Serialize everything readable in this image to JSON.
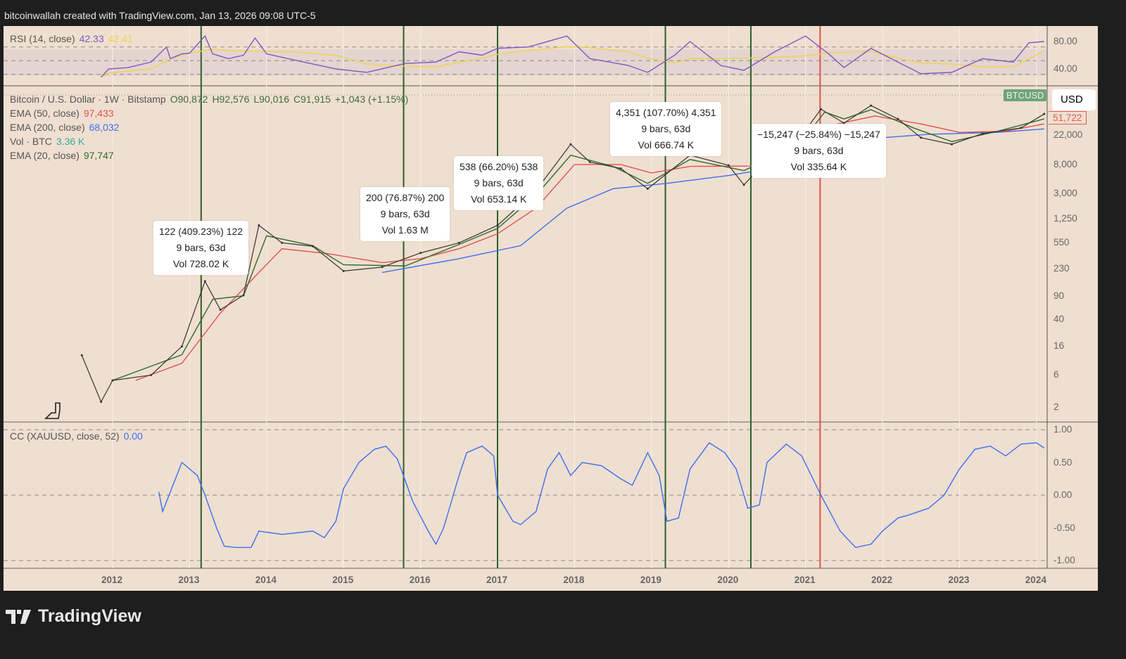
{
  "credit": "bitcoinwallah created with TradingView.com, Jan 13, 2026 09:08 UTC-5",
  "brand": "TradingView",
  "rsi": {
    "label": "RSI (14, close)",
    "value": "42.33",
    "ma_value": "42.41",
    "ticks": [
      "80.00",
      "40.00"
    ],
    "color": "#7e57c2",
    "ma_color": "#f0d34a"
  },
  "main": {
    "symbol": "Bitcoin / U.S. Dollar · 1W · Bitstamp",
    "open": "O90,872",
    "high": "H92,576",
    "low": "L90,016",
    "close": "C91,915",
    "change": "+1,043 (+1.15%)",
    "ema50": {
      "label": "EMA (50, close)",
      "value": "97,433",
      "color": "#e2524e"
    },
    "ema200": {
      "label": "EMA (200, close)",
      "value": "68,032",
      "color": "#3c6ff0"
    },
    "vol": {
      "label": "Vol · BTC",
      "value": "3.36 K",
      "color": "#3aa79a"
    },
    "ema20": {
      "label": "EMA (20, close)",
      "value": "97,747",
      "color": "#2e6a2e"
    },
    "ticker_tag": "BTCUSD",
    "currency": "USD",
    "last_price": "51,722",
    "price_ticks": [
      "22,000",
      "8,000",
      "3,000",
      "1,250",
      "550",
      "230",
      "90",
      "40",
      "16",
      "6",
      "2"
    ]
  },
  "cc": {
    "label": "CC (XAUUSD, close, 52)",
    "value": "0.00",
    "color": "#3c6ff0",
    "ticks": [
      "1.00",
      "0.50",
      "0.00",
      "-0.50",
      "-1.00"
    ]
  },
  "x_ticks": [
    "2012",
    "2013",
    "2014",
    "2015",
    "2016",
    "2017",
    "2018",
    "2019",
    "2020",
    "2021",
    "2022",
    "2023",
    "2024"
  ],
  "annotations": [
    {
      "line1": "122 (409.23%) 122",
      "line2": "9 bars, 63d",
      "line3": "Vol 728.02 K"
    },
    {
      "line1": "200 (76.87%) 200",
      "line2": "9 bars, 63d",
      "line3": "Vol 1.63 M"
    },
    {
      "line1": "538 (66.20%) 538",
      "line2": "9 bars, 63d",
      "line3": "Vol 653.14 K"
    },
    {
      "line1": "4,351 (107.70%) 4,351",
      "line2": "9 bars, 63d",
      "line3": "Vol 666.74 K"
    },
    {
      "line1": "−15,247 (−25.84%) −15,247",
      "line2": "9 bars, 63d",
      "line3": "Vol 335.64 K"
    }
  ],
  "chart_data": [
    {
      "type": "line",
      "title": "Bitcoin / U.S. Dollar · 1W · Bitstamp",
      "yscale": "log",
      "x_unit": "year",
      "price": [
        [
          2011.6,
          11.8
        ],
        [
          2011.85,
          2.4
        ],
        [
          2012.0,
          5
        ],
        [
          2012.5,
          6
        ],
        [
          2012.9,
          16
        ],
        [
          2013.2,
          148
        ],
        [
          2013.4,
          56
        ],
        [
          2013.7,
          92
        ],
        [
          2013.9,
          1000
        ],
        [
          2014.2,
          550
        ],
        [
          2014.6,
          490
        ],
        [
          2015.0,
          210
        ],
        [
          2015.5,
          240
        ],
        [
          2016.0,
          390
        ],
        [
          2016.5,
          550
        ],
        [
          2017.0,
          1000
        ],
        [
          2017.5,
          3300
        ],
        [
          2017.95,
          16000
        ],
        [
          2018.2,
          8700
        ],
        [
          2018.6,
          7000
        ],
        [
          2018.95,
          3500
        ],
        [
          2019.5,
          11000
        ],
        [
          2020.0,
          7800
        ],
        [
          2020.2,
          4000
        ],
        [
          2020.5,
          9200
        ],
        [
          2020.9,
          18000
        ],
        [
          2021.2,
          53000
        ],
        [
          2021.5,
          33000
        ],
        [
          2021.85,
          60000
        ],
        [
          2022.2,
          38000
        ],
        [
          2022.5,
          20000
        ],
        [
          2022.9,
          16000
        ],
        [
          2023.3,
          23000
        ],
        [
          2023.8,
          28000
        ],
        [
          2024.1,
          45000
        ]
      ],
      "ema20": [
        [
          2012.0,
          5
        ],
        [
          2012.9,
          12
        ],
        [
          2013.3,
          80
        ],
        [
          2013.7,
          90
        ],
        [
          2014.0,
          700
        ],
        [
          2014.6,
          500
        ],
        [
          2015.0,
          260
        ],
        [
          2015.8,
          250
        ],
        [
          2016.5,
          520
        ],
        [
          2017.0,
          900
        ],
        [
          2017.5,
          2800
        ],
        [
          2017.95,
          11000
        ],
        [
          2018.5,
          7500
        ],
        [
          2018.95,
          4200
        ],
        [
          2019.5,
          9500
        ],
        [
          2020.2,
          6500
        ],
        [
          2020.9,
          15000
        ],
        [
          2021.25,
          48000
        ],
        [
          2021.5,
          38000
        ],
        [
          2021.85,
          52000
        ],
        [
          2022.4,
          28000
        ],
        [
          2022.9,
          17500
        ],
        [
          2023.5,
          25000
        ],
        [
          2024.1,
          38000
        ]
      ],
      "ema50": [
        [
          2012.3,
          5
        ],
        [
          2012.9,
          9
        ],
        [
          2013.4,
          50
        ],
        [
          2013.9,
          200
        ],
        [
          2014.2,
          450
        ],
        [
          2014.8,
          380
        ],
        [
          2015.5,
          280
        ],
        [
          2016.0,
          320
        ],
        [
          2016.5,
          450
        ],
        [
          2017.0,
          750
        ],
        [
          2017.5,
          1800
        ],
        [
          2018.0,
          8000
        ],
        [
          2018.6,
          8000
        ],
        [
          2019.0,
          6000
        ],
        [
          2019.5,
          7500
        ],
        [
          2020.3,
          7600
        ],
        [
          2020.9,
          12000
        ],
        [
          2021.3,
          30000
        ],
        [
          2021.9,
          42000
        ],
        [
          2022.5,
          32000
        ],
        [
          2023.0,
          24000
        ],
        [
          2023.6,
          25000
        ],
        [
          2024.1,
          32000
        ]
      ],
      "ema200": [
        [
          2015.5,
          200
        ],
        [
          2016.5,
          320
        ],
        [
          2017.3,
          500
        ],
        [
          2017.9,
          1800
        ],
        [
          2018.5,
          3500
        ],
        [
          2019.2,
          4200
        ],
        [
          2020.0,
          5500
        ],
        [
          2020.6,
          7200
        ],
        [
          2021.0,
          10000
        ],
        [
          2021.5,
          16000
        ],
        [
          2022.0,
          20000
        ],
        [
          2022.6,
          22500
        ],
        [
          2023.5,
          24000
        ],
        [
          2024.1,
          27000
        ]
      ],
      "markers": {
        "green": [
          2013.15,
          2015.78,
          2017.0,
          2019.18,
          2020.29
        ],
        "red": [
          2021.19
        ]
      }
    },
    {
      "type": "line",
      "title": "RSI (14, close)",
      "ylim": [
        20,
        100
      ],
      "rsi": [
        [
          2011.85,
          28
        ],
        [
          2011.95,
          40
        ],
        [
          2012.2,
          42
        ],
        [
          2012.5,
          50
        ],
        [
          2012.7,
          72
        ],
        [
          2012.75,
          55
        ],
        [
          2012.9,
          62
        ],
        [
          2013.0,
          63
        ],
        [
          2013.2,
          88
        ],
        [
          2013.3,
          62
        ],
        [
          2013.5,
          55
        ],
        [
          2013.7,
          60
        ],
        [
          2013.85,
          85
        ],
        [
          2014.0,
          62
        ],
        [
          2014.4,
          52
        ],
        [
          2014.9,
          40
        ],
        [
          2015.3,
          35
        ],
        [
          2015.8,
          48
        ],
        [
          2016.2,
          50
        ],
        [
          2016.5,
          65
        ],
        [
          2016.8,
          60
        ],
        [
          2017.0,
          70
        ],
        [
          2017.4,
          72
        ],
        [
          2017.9,
          88
        ],
        [
          2018.2,
          55
        ],
        [
          2018.7,
          45
        ],
        [
          2018.95,
          35
        ],
        [
          2019.3,
          60
        ],
        [
          2019.5,
          80
        ],
        [
          2019.9,
          45
        ],
        [
          2020.2,
          38
        ],
        [
          2020.6,
          65
        ],
        [
          2021.0,
          88
        ],
        [
          2021.3,
          62
        ],
        [
          2021.5,
          42
        ],
        [
          2021.85,
          70
        ],
        [
          2022.2,
          50
        ],
        [
          2022.5,
          33
        ],
        [
          2022.9,
          35
        ],
        [
          2023.3,
          55
        ],
        [
          2023.7,
          50
        ],
        [
          2023.9,
          78
        ],
        [
          2024.1,
          80
        ]
      ]
    },
    {
      "type": "line",
      "title": "CC (XAUUSD, close, 52)",
      "ylim": [
        -1,
        1
      ],
      "cc": [
        [
          2012.6,
          0.05
        ],
        [
          2012.65,
          -0.25
        ],
        [
          2012.8,
          0.2
        ],
        [
          2012.9,
          0.5
        ],
        [
          2013.1,
          0.3
        ],
        [
          2013.2,
          0
        ],
        [
          2013.35,
          -0.5
        ],
        [
          2013.45,
          -0.78
        ],
        [
          2013.6,
          -0.8
        ],
        [
          2013.8,
          -0.8
        ],
        [
          2013.9,
          -0.55
        ],
        [
          2014.2,
          -0.6
        ],
        [
          2014.6,
          -0.55
        ],
        [
          2014.75,
          -0.65
        ],
        [
          2014.9,
          -0.4
        ],
        [
          2015.0,
          0.1
        ],
        [
          2015.2,
          0.5
        ],
        [
          2015.4,
          0.7
        ],
        [
          2015.55,
          0.75
        ],
        [
          2015.7,
          0.55
        ],
        [
          2015.9,
          -0.1
        ],
        [
          2016.1,
          -0.55
        ],
        [
          2016.2,
          -0.75
        ],
        [
          2016.3,
          -0.5
        ],
        [
          2016.5,
          0.3
        ],
        [
          2016.6,
          0.65
        ],
        [
          2016.8,
          0.75
        ],
        [
          2016.95,
          0.6
        ],
        [
          2017.0,
          0.0
        ],
        [
          2017.2,
          -0.4
        ],
        [
          2017.3,
          -0.45
        ],
        [
          2017.5,
          -0.25
        ],
        [
          2017.65,
          0.4
        ],
        [
          2017.8,
          0.65
        ],
        [
          2017.95,
          0.3
        ],
        [
          2018.1,
          0.5
        ],
        [
          2018.35,
          0.45
        ],
        [
          2018.6,
          0.25
        ],
        [
          2018.75,
          0.15
        ],
        [
          2018.95,
          0.65
        ],
        [
          2019.1,
          0.3
        ],
        [
          2019.2,
          -0.4
        ],
        [
          2019.35,
          -0.35
        ],
        [
          2019.5,
          0.4
        ],
        [
          2019.75,
          0.8
        ],
        [
          2019.95,
          0.65
        ],
        [
          2020.1,
          0.4
        ],
        [
          2020.25,
          -0.2
        ],
        [
          2020.4,
          -0.15
        ],
        [
          2020.5,
          0.5
        ],
        [
          2020.75,
          0.78
        ],
        [
          2020.95,
          0.6
        ],
        [
          2021.2,
          0.0
        ],
        [
          2021.45,
          -0.55
        ],
        [
          2021.65,
          -0.8
        ],
        [
          2021.85,
          -0.75
        ],
        [
          2022.0,
          -0.55
        ],
        [
          2022.2,
          -0.35
        ],
        [
          2022.35,
          -0.3
        ],
        [
          2022.6,
          -0.2
        ],
        [
          2022.8,
          0.0
        ],
        [
          2023.0,
          0.4
        ],
        [
          2023.2,
          0.7
        ],
        [
          2023.4,
          0.75
        ],
        [
          2023.6,
          0.6
        ],
        [
          2023.8,
          0.78
        ],
        [
          2024.0,
          0.8
        ],
        [
          2024.1,
          0.72
        ]
      ]
    }
  ]
}
